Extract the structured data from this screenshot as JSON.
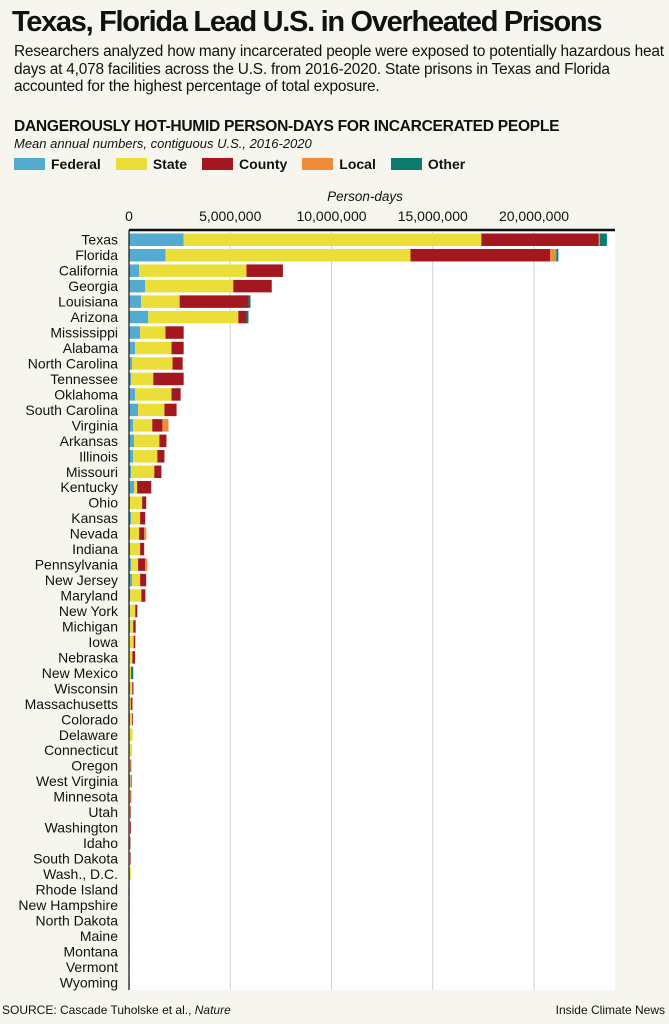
{
  "title": "Texas, Florida Lead U.S. in Overheated Prisons",
  "intro": "Researchers analyzed how many incarcerated people were exposed to potentially hazardous heat days at 4,078 facilities across the U.S. from 2016-2020. State prisons in Texas and Florida accounted for the highest percentage of total exposure.",
  "source": "SOURCE: Cascade Tuholske et al., ",
  "source_italic": "Nature",
  "credit": "Inside Climate News",
  "colors": {
    "Federal": "#53acd0",
    "State": "#ecde38",
    "County": "#a5171f",
    "Local": "#ee8c3a",
    "Other": "#0b7b70",
    "plot_bg": "#ffffff",
    "page_bg": "#f7f6ee"
  },
  "chart_data": {
    "type": "bar",
    "orientation": "horizontal",
    "stacked": true,
    "title": "DANGEROUSLY HOT-HUMID PERSON-DAYS FOR INCARCERATED PEOPLE",
    "subtitle": "Mean annual numbers, contiguous U.S., 2016-2020",
    "xlabel": "Person-days",
    "ylabel": "",
    "xlim": [
      0,
      24000000
    ],
    "xticks": [
      0,
      5000000,
      10000000,
      15000000,
      20000000
    ],
    "xtick_labels": [
      "0",
      "5,000,000",
      "10,000,000",
      "15,000,000",
      "20,000,000"
    ],
    "grid": true,
    "legend_position": "top-left",
    "categories": [
      "Texas",
      "Florida",
      "California",
      "Georgia",
      "Louisiana",
      "Arizona",
      "Mississippi",
      "Alabama",
      "North Carolina",
      "Tennessee",
      "Oklahoma",
      "South Carolina",
      "Virginia",
      "Arkansas",
      "Illinois",
      "Missouri",
      "Kentucky",
      "Ohio",
      "Kansas",
      "Nevada",
      "Indiana",
      "Pennsylvania",
      "New Jersey",
      "Maryland",
      "New York",
      "Michigan",
      "Iowa",
      "Nebraska",
      "New Mexico",
      "Wisconsin",
      "Massachusetts",
      "Colorado",
      "Delaware",
      "Connecticut",
      "Oregon",
      "West Virginia",
      "Minnesota",
      "Utah",
      "Washington",
      "Idaho",
      "South Dakota",
      "Wash., D.C.",
      "Rhode Island",
      "New Hampshire",
      "North Dakota",
      "Maine",
      "Montana",
      "Vermont",
      "Wyoming"
    ],
    "series": [
      {
        "name": "Federal",
        "values": [
          2700000,
          1800000,
          500000,
          800000,
          600000,
          950000,
          550000,
          300000,
          150000,
          100000,
          300000,
          450000,
          200000,
          250000,
          200000,
          100000,
          250000,
          50000,
          100000,
          50000,
          50000,
          100000,
          150000,
          60000,
          60000,
          60000,
          30000,
          20000,
          30000,
          60000,
          20000,
          60000,
          10000,
          30000,
          30000,
          60000,
          30000,
          20000,
          30000,
          20000,
          30000,
          10000,
          10000,
          10000,
          10000,
          5000,
          5000,
          5000,
          5000
        ]
      },
      {
        "name": "State",
        "values": [
          14700000,
          12100000,
          5300000,
          4350000,
          1900000,
          4450000,
          1250000,
          1800000,
          2000000,
          1100000,
          1800000,
          1300000,
          950000,
          1250000,
          1200000,
          1150000,
          150000,
          600000,
          450000,
          450000,
          500000,
          350000,
          400000,
          550000,
          250000,
          150000,
          200000,
          150000,
          70000,
          100000,
          70000,
          90000,
          170000,
          120000,
          40000,
          30000,
          40000,
          40000,
          20000,
          20000,
          20000,
          80000,
          30000,
          20000,
          20000,
          15000,
          10000,
          10000,
          10000
        ]
      },
      {
        "name": "County",
        "values": [
          5800000,
          6900000,
          1800000,
          1900000,
          3400000,
          400000,
          900000,
          600000,
          500000,
          1500000,
          450000,
          600000,
          500000,
          350000,
          350000,
          350000,
          700000,
          200000,
          250000,
          250000,
          200000,
          350000,
          300000,
          200000,
          100000,
          120000,
          80000,
          130000,
          30000,
          60000,
          80000,
          40000,
          0,
          0,
          40000,
          40000,
          40000,
          30000,
          40000,
          30000,
          20000,
          0,
          0,
          0,
          0,
          0,
          0,
          0,
          0
        ]
      },
      {
        "name": "Local",
        "values": [
          50000,
          300000,
          0,
          0,
          0,
          0,
          0,
          0,
          0,
          0,
          0,
          0,
          300000,
          0,
          0,
          0,
          0,
          0,
          0,
          100000,
          0,
          100000,
          0,
          0,
          0,
          0,
          0,
          0,
          0,
          0,
          0,
          0,
          0,
          0,
          0,
          0,
          0,
          0,
          0,
          0,
          0,
          0,
          0,
          0,
          0,
          0,
          0,
          0,
          0
        ]
      },
      {
        "name": "Other",
        "values": [
          350000,
          100000,
          0,
          0,
          100000,
          100000,
          0,
          0,
          0,
          0,
          0,
          0,
          0,
          0,
          0,
          0,
          0,
          0,
          0,
          0,
          0,
          0,
          0,
          0,
          0,
          0,
          0,
          0,
          80000,
          0,
          0,
          0,
          0,
          0,
          0,
          0,
          0,
          0,
          0,
          0,
          0,
          0,
          0,
          0,
          0,
          0,
          0,
          0,
          0
        ]
      }
    ]
  }
}
